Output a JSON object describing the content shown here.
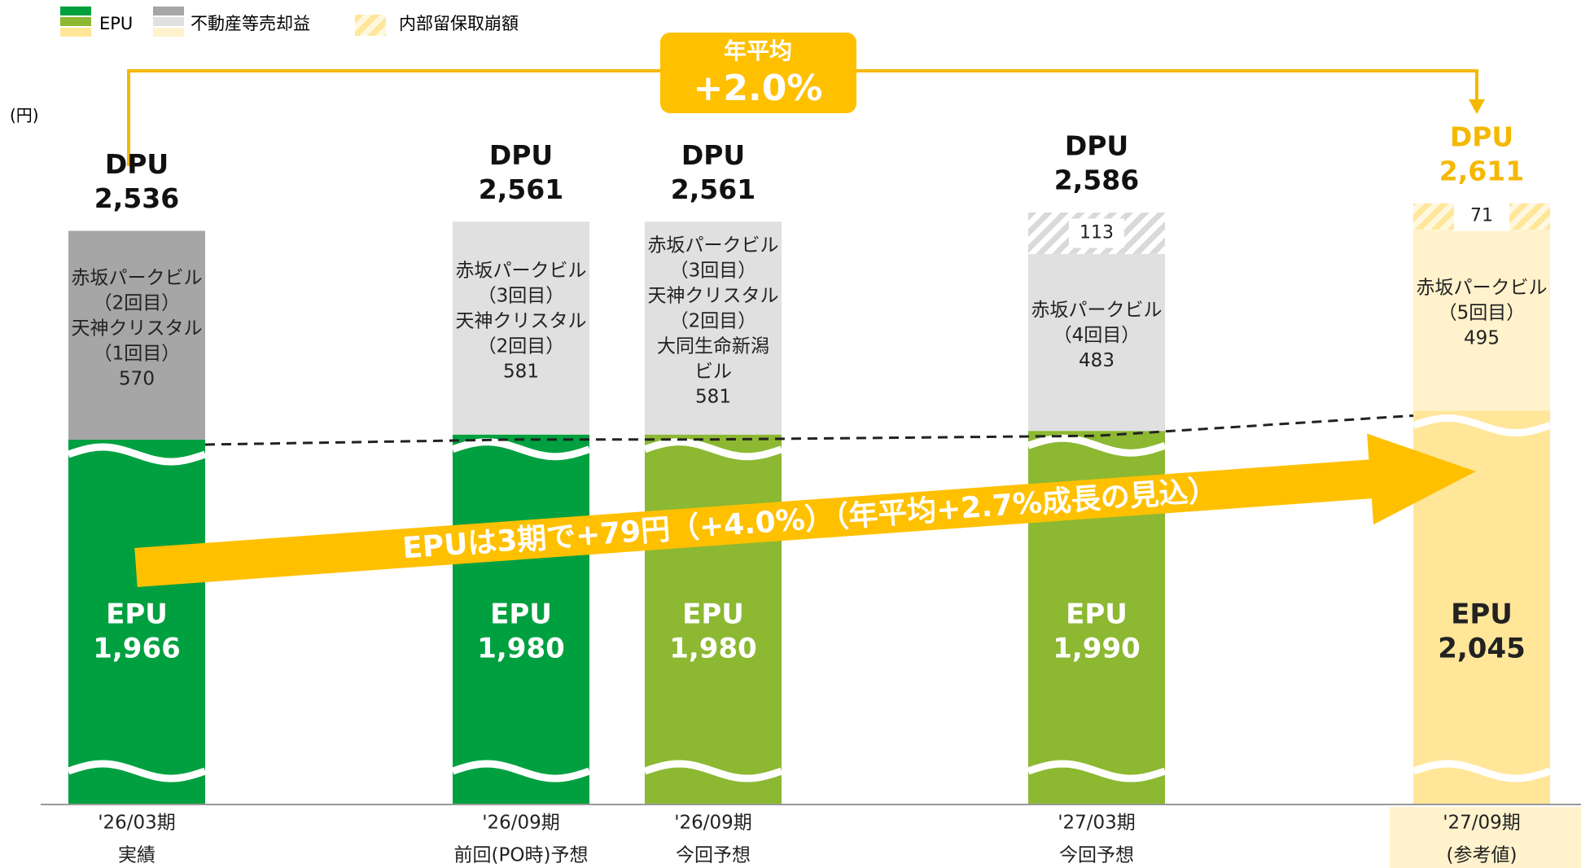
{
  "chart_data": {
    "type": "bar",
    "stacked": true,
    "unit_label": "(円)",
    "legend": [
      "EPU",
      "不動産等売却益",
      "内部留保取崩額"
    ],
    "categories": [
      "'26/03期",
      "'26/09期",
      "'26/09期",
      "'27/03期",
      "'27/09期"
    ],
    "category_notes": [
      "実績",
      "前回(PO時)予想",
      "今回予想",
      "今回予想",
      "(参考値)"
    ],
    "series": [
      {
        "name": "EPU",
        "label": "EPU",
        "colors": [
          "#00a040",
          "#00a040",
          "#8cb832",
          "#8cb832",
          "#ffe699"
        ],
        "values": [
          1966,
          1980,
          1980,
          1990,
          2045
        ],
        "value_labels": [
          "1,966",
          "1,980",
          "1,980",
          "1,990",
          "2,045"
        ]
      },
      {
        "name": "不動産等売却益",
        "colors": [
          "#a6a6a6",
          "#e0e0e0",
          "#e0e0e0",
          "#e0e0e0",
          "#fff2cc"
        ],
        "values": [
          570,
          581,
          581,
          483,
          495
        ],
        "notes": [
          [
            "赤坂パークビル",
            "（2回目）",
            "天神クリスタル",
            "（1回目）"
          ],
          [
            "赤坂パークビル",
            "（3回目）",
            "天神クリスタル",
            "（2回目）"
          ],
          [
            "赤坂パークビル",
            "（3回目）",
            "天神クリスタル",
            "（2回目）",
            "大同生命新潟",
            "ビル"
          ],
          [
            "赤坂パークビル",
            "（4回目）"
          ],
          [
            "赤坂パークビル",
            "（5回目）"
          ]
        ]
      },
      {
        "name": "内部留保取崩額",
        "colors": [
          null,
          null,
          null,
          "#d9d9d9",
          "#ffe699"
        ],
        "values": [
          null,
          null,
          null,
          113,
          71
        ]
      }
    ],
    "dpu_label": "DPU",
    "dpu": [
      2536,
      2561,
      2561,
      2586,
      2611
    ],
    "dpu_labels": [
      "2,536",
      "2,561",
      "2,561",
      "2,586",
      "2,611"
    ],
    "annotations": {
      "arrow": "EPUは3期で+79円（+4.0%）（年平均+2.7%成長の見込）",
      "box_title": "年平均",
      "box_value": "+2.0%"
    }
  }
}
